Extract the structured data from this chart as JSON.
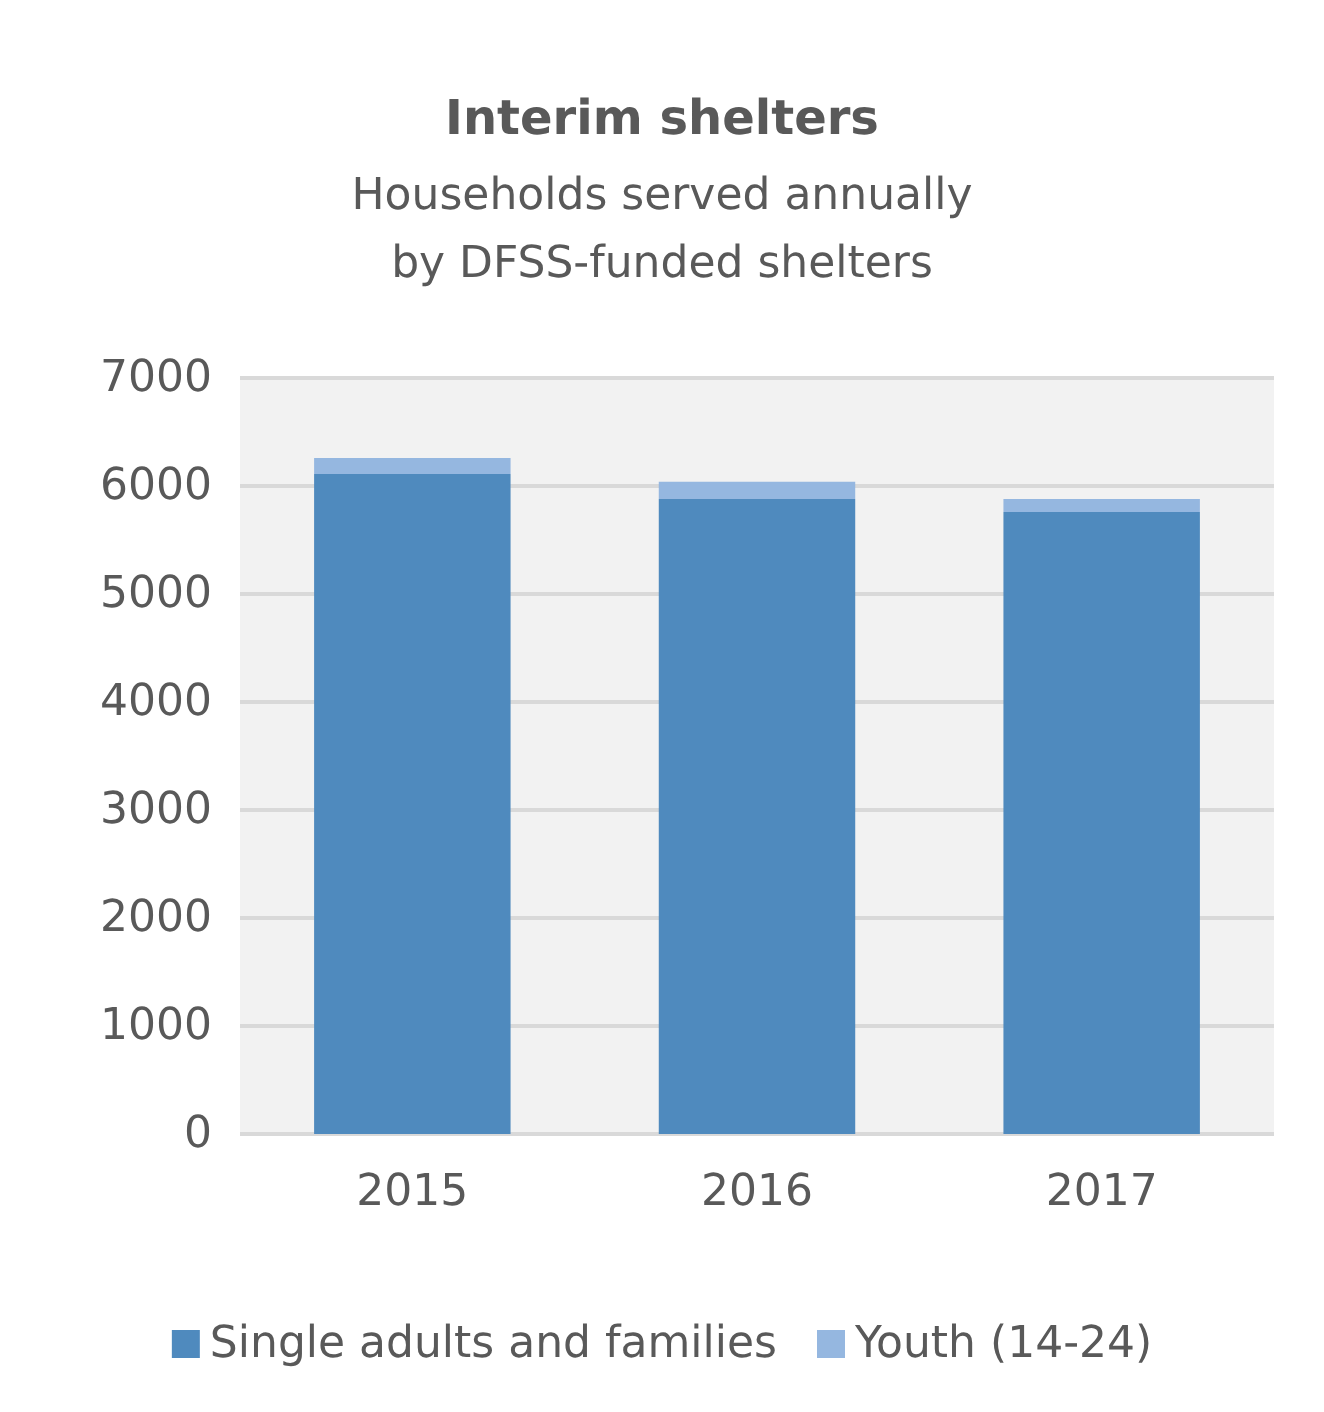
{
  "chart_data": {
    "type": "bar",
    "title": "Interim shelters",
    "subtitle": "Households served annually\nby DFSS-funded shelters",
    "categories": [
      "2015",
      "2016",
      "2017"
    ],
    "series": [
      {
        "name": "Single adults and families",
        "color": "#4f8abe",
        "values": [
          6110,
          5880,
          5760
        ]
      },
      {
        "name": "Youth (14-24)",
        "color": "#95b7e0",
        "values": [
          150,
          160,
          120
        ]
      }
    ],
    "stacked": true,
    "ylim": [
      0,
      7000
    ],
    "yticks": [
      0,
      1000,
      2000,
      3000,
      4000,
      5000,
      6000,
      7000
    ],
    "grid": "y",
    "legend": "bottom"
  }
}
